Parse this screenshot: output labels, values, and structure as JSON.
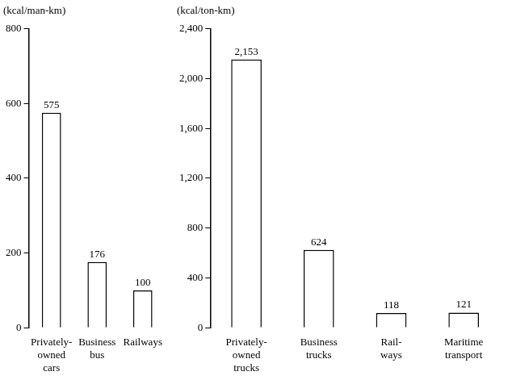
{
  "chart_data": [
    {
      "type": "bar",
      "ylabel": "(kcal/man-km)",
      "categories": [
        [
          "Privately-",
          "owned",
          "cars"
        ],
        [
          "Business",
          "bus"
        ],
        [
          "Railways"
        ]
      ],
      "values": [
        575,
        176,
        100
      ],
      "color": "#ffffff",
      "ylim": [
        0,
        800
      ],
      "yticks": [
        0,
        200,
        400,
        600,
        800
      ],
      "grid": false,
      "data_labels": true
    },
    {
      "type": "bar",
      "ylabel": "(kcal/ton-km)",
      "categories": [
        [
          "Privately-",
          "owned",
          "trucks"
        ],
        [
          "Business",
          "trucks"
        ],
        [
          "Rail-",
          "ways"
        ],
        [
          "Maritime",
          "transport"
        ]
      ],
      "values": [
        2153,
        624,
        118,
        121
      ],
      "value_labels": [
        "2,153",
        "624",
        "118",
        "121"
      ],
      "color": "#ffffff",
      "ylim": [
        0,
        2400
      ],
      "yticks": [
        0,
        400,
        800,
        {
          "value": 1200,
          "label": "1,200"
        },
        {
          "value": 1600,
          "label": "1,600"
        },
        {
          "value": 2000,
          "label": "2,000"
        },
        {
          "value": 2400,
          "label": "2,400"
        }
      ],
      "grid": false,
      "data_labels": true
    }
  ]
}
